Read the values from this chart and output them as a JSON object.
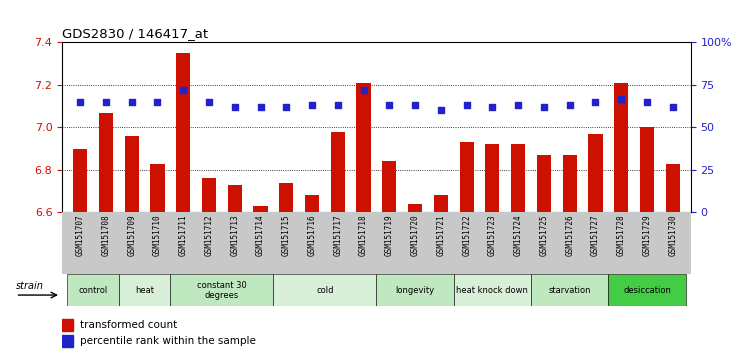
{
  "title": "GDS2830 / 146417_at",
  "samples": [
    "GSM151707",
    "GSM151708",
    "GSM151709",
    "GSM151710",
    "GSM151711",
    "GSM151712",
    "GSM151713",
    "GSM151714",
    "GSM151715",
    "GSM151716",
    "GSM151717",
    "GSM151718",
    "GSM151719",
    "GSM151720",
    "GSM151721",
    "GSM151722",
    "GSM151723",
    "GSM151724",
    "GSM151725",
    "GSM151726",
    "GSM151727",
    "GSM151728",
    "GSM151729",
    "GSM151730"
  ],
  "bar_values": [
    6.9,
    7.07,
    6.96,
    6.83,
    7.35,
    6.76,
    6.73,
    6.63,
    6.74,
    6.68,
    6.98,
    7.21,
    6.84,
    6.64,
    6.68,
    6.93,
    6.92,
    6.92,
    6.87,
    6.87,
    6.97,
    7.21,
    7.0,
    6.83
  ],
  "percentile_values": [
    65,
    65,
    65,
    65,
    72,
    65,
    62,
    62,
    62,
    63,
    63,
    72,
    63,
    63,
    60,
    63,
    62,
    63,
    62,
    63,
    65,
    67,
    65,
    62
  ],
  "bar_color": "#CC1100",
  "dot_color": "#2222CC",
  "ylim_left": [
    6.6,
    7.4
  ],
  "ylim_right": [
    0,
    100
  ],
  "yticks_left": [
    6.6,
    6.8,
    7.0,
    7.2,
    7.4
  ],
  "yticks_right": [
    0,
    25,
    50,
    75,
    100
  ],
  "ytick_labels_right": [
    "0",
    "25",
    "50",
    "75",
    "100%"
  ],
  "grid_values": [
    6.8,
    7.0,
    7.2
  ],
  "groups": [
    {
      "label": "control",
      "start": 0,
      "end": 2,
      "color": "#c0e8c0"
    },
    {
      "label": "heat",
      "start": 2,
      "end": 4,
      "color": "#d8f0d8"
    },
    {
      "label": "constant 30\ndegrees",
      "start": 4,
      "end": 8,
      "color": "#c0e8c0"
    },
    {
      "label": "cold",
      "start": 8,
      "end": 12,
      "color": "#d8f0d8"
    },
    {
      "label": "longevity",
      "start": 12,
      "end": 15,
      "color": "#c0e8c0"
    },
    {
      "label": "heat knock down",
      "start": 15,
      "end": 18,
      "color": "#d8f0d8"
    },
    {
      "label": "starvation",
      "start": 18,
      "end": 21,
      "color": "#c0e8c0"
    },
    {
      "label": "desiccation",
      "start": 21,
      "end": 24,
      "color": "#44cc44"
    }
  ],
  "bar_width": 0.55,
  "xtick_bg": "#c8c8c8",
  "legend_bar_label": "transformed count",
  "legend_dot_label": "percentile rank within the sample"
}
